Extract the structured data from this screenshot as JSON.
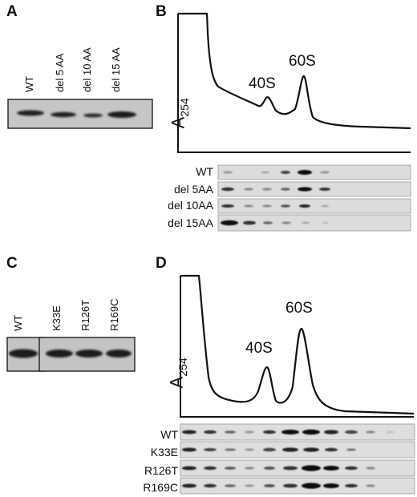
{
  "panels": {
    "A": {
      "letter": "A",
      "lanes": [
        "WT",
        "del 5 AA",
        "del 10 AA",
        "del 15 AA"
      ]
    },
    "B": {
      "letter": "B",
      "y_label_main": "A",
      "y_label_sub": "254",
      "peaks": [
        "40S",
        "60S"
      ],
      "rows": [
        "WT",
        "del 5AA",
        "del 10AA",
        "del 15AA"
      ]
    },
    "C": {
      "letter": "C",
      "lanes": [
        "WT",
        "K33E",
        "R126T",
        "R169C"
      ]
    },
    "D": {
      "letter": "D",
      "y_label_main": "A",
      "y_label_sub": "254",
      "peaks": [
        "40S",
        "60S"
      ],
      "rows": [
        "WT",
        "K33E",
        "R126T",
        "R169C"
      ]
    }
  },
  "colors": {
    "ink": "#111111",
    "blot_bg": "#c9c9c9",
    "strip_bg": "#dedede"
  }
}
